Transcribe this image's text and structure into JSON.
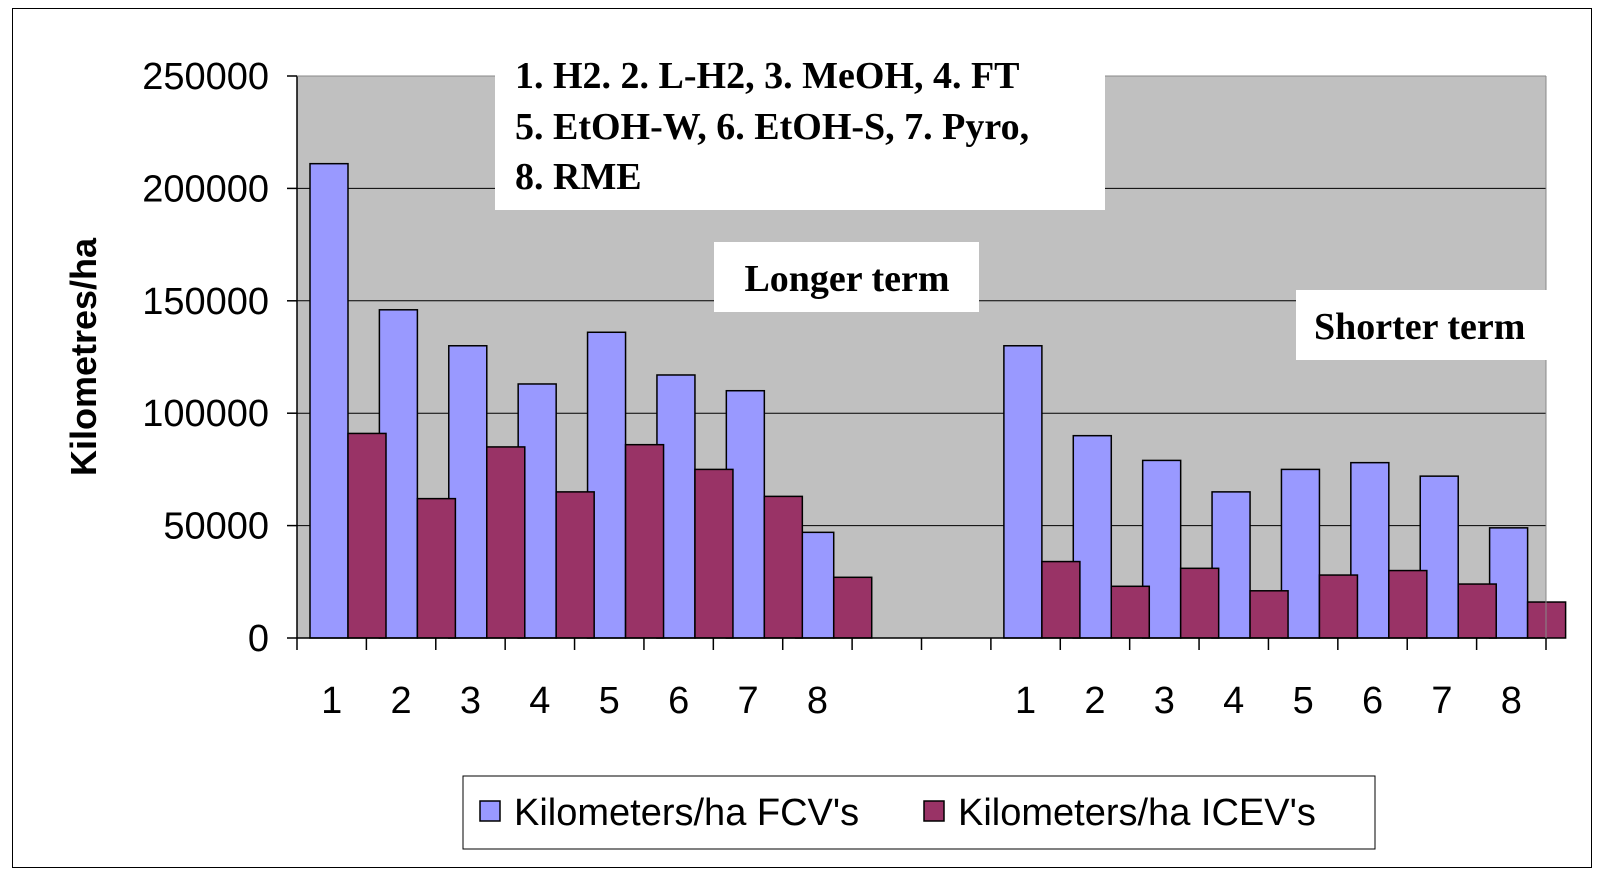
{
  "chart_data": {
    "type": "bar",
    "title": "",
    "ylabel": "Kilometres/ha",
    "xlabel": "",
    "ylim": [
      0,
      250000
    ],
    "yticks": [
      0,
      50000,
      100000,
      150000,
      200000,
      250000
    ],
    "ytick_labels": [
      "0",
      "50000",
      "100000",
      "150000",
      "200000",
      "250000"
    ],
    "grid": true,
    "categories": [
      "1",
      "2",
      "3",
      "4",
      "5",
      "6",
      "7",
      "8",
      "",
      "",
      "1",
      "2",
      "3",
      "4",
      "5",
      "6",
      "7",
      "8"
    ],
    "series": [
      {
        "name": "Kilometers/ha FCV's",
        "color": "#9999ff",
        "values": [
          211000,
          146000,
          130000,
          113000,
          136000,
          117000,
          110000,
          47000,
          null,
          null,
          130000,
          90000,
          79000,
          65000,
          75000,
          78000,
          72000,
          49000
        ]
      },
      {
        "name": "Kilometers/ha ICEV's",
        "color": "#993366",
        "values": [
          91000,
          62000,
          85000,
          65000,
          86000,
          75000,
          63000,
          27000,
          null,
          null,
          34000,
          23000,
          31000,
          21000,
          28000,
          30000,
          24000,
          16000
        ]
      }
    ],
    "legend_position": "bottom",
    "annotations": {
      "key_lines": [
        "1. H2. 2. L-H2, 3. MeOH, 4. FT",
        "5. EtOH-W, 6. EtOH-S, 7. Pyro,",
        "8. RME"
      ],
      "longer_term": "Longer term",
      "shorter_term": "Shorter term"
    },
    "colors": {
      "plot_background": "#c0c0c0",
      "gridline": "#000000"
    }
  }
}
